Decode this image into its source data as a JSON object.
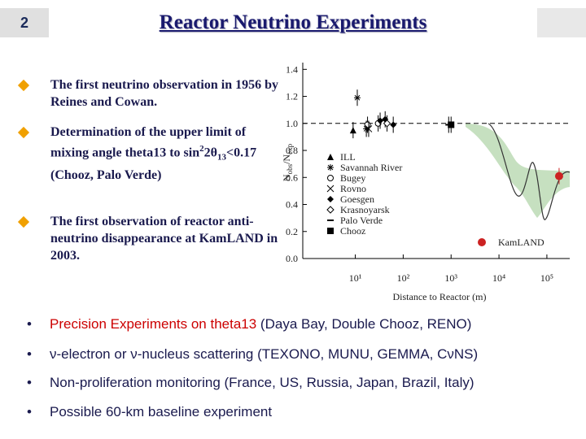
{
  "slide_number": "2",
  "title": "Reactor Neutrino Experiments",
  "bullets": [
    [
      "The first neutrino observation in 1956 by Reines and Cowan."
    ],
    [
      "Determination of the upper limit of mixing angle theta13 to sin",
      "2",
      "2θ",
      "13",
      "<0.17 (Chooz, Palo Verde)"
    ],
    [
      "The first observation of reactor anti-neutrino disappearance at KamLAND in 2003."
    ]
  ],
  "bottom_bullets": [
    [
      "Precision Experiments on theta13",
      " (Daya Bay, Double Chooz, RENO)"
    ],
    [
      "ν-electron or ν-nucleus scattering (TEXONO, MUNU, GEMMA, CνNS)"
    ],
    [
      "Non-proliferation monitoring (France, US, Russia, Japan, Brazil, Italy)"
    ],
    [
      "Possible 60-km baseline experiment"
    ]
  ],
  "chart_data": {
    "type": "scatter",
    "xlabel": "Distance to Reactor (m)",
    "ylabel": [
      "N",
      "obs",
      "/N",
      "exp"
    ],
    "xlog": true,
    "xlim": [
      0.8,
      300000
    ],
    "xticks": [
      {
        "value": 10,
        "label": "10¹"
      },
      {
        "value": 100,
        "label": "10²"
      },
      {
        "value": 1000,
        "label": "10³"
      },
      {
        "value": 10000,
        "label": "10⁴"
      },
      {
        "value": 100000,
        "label": "10⁵"
      }
    ],
    "ylim": [
      0,
      1.45
    ],
    "yticks": [
      {
        "value": 0,
        "label": "0.0"
      },
      0.2,
      0.4,
      0.6,
      0.8,
      {
        "value": 1,
        "label": "1.0"
      },
      1.2,
      1.4
    ],
    "reference_line": 1,
    "series": [
      {
        "name": "ILL",
        "marker": "triangle",
        "color": "#000000",
        "x": [
          9
        ],
        "values": [
          0.95
        ]
      },
      {
        "name": "Savannah River",
        "marker": "asterisk",
        "color": "#000000",
        "x": [
          11,
          17
        ],
        "values": [
          1.19,
          0.96
        ]
      },
      {
        "name": "Bugey",
        "marker": "circle-open",
        "color": "#000000",
        "x": [
          18,
          30
        ],
        "values": [
          0.99,
          1.0
        ]
      },
      {
        "name": "Rovno",
        "marker": "cross",
        "color": "#000000",
        "x": [
          19
        ],
        "values": [
          0.96
        ]
      },
      {
        "name": "Goesgen",
        "marker": "diamond",
        "color": "#000000",
        "x": [
          33,
          42,
          62
        ],
        "values": [
          1.02,
          1.03,
          0.99
        ]
      },
      {
        "name": "Krasnoyarsk",
        "marker": "diamond-open",
        "color": "#000000",
        "x": [
          46
        ],
        "values": [
          1.0
        ]
      },
      {
        "name": "Palo Verde",
        "marker": "dash",
        "color": "#000000",
        "x": [
          890
        ],
        "values": [
          0.99
        ]
      },
      {
        "name": "Chooz",
        "marker": "square",
        "color": "#000000",
        "x": [
          1000
        ],
        "values": [
          0.99
        ]
      },
      {
        "name": "KamLAND",
        "marker": "circle",
        "color": "#cc2222",
        "x": [
          180000
        ],
        "values": [
          0.61
        ]
      }
    ]
  }
}
